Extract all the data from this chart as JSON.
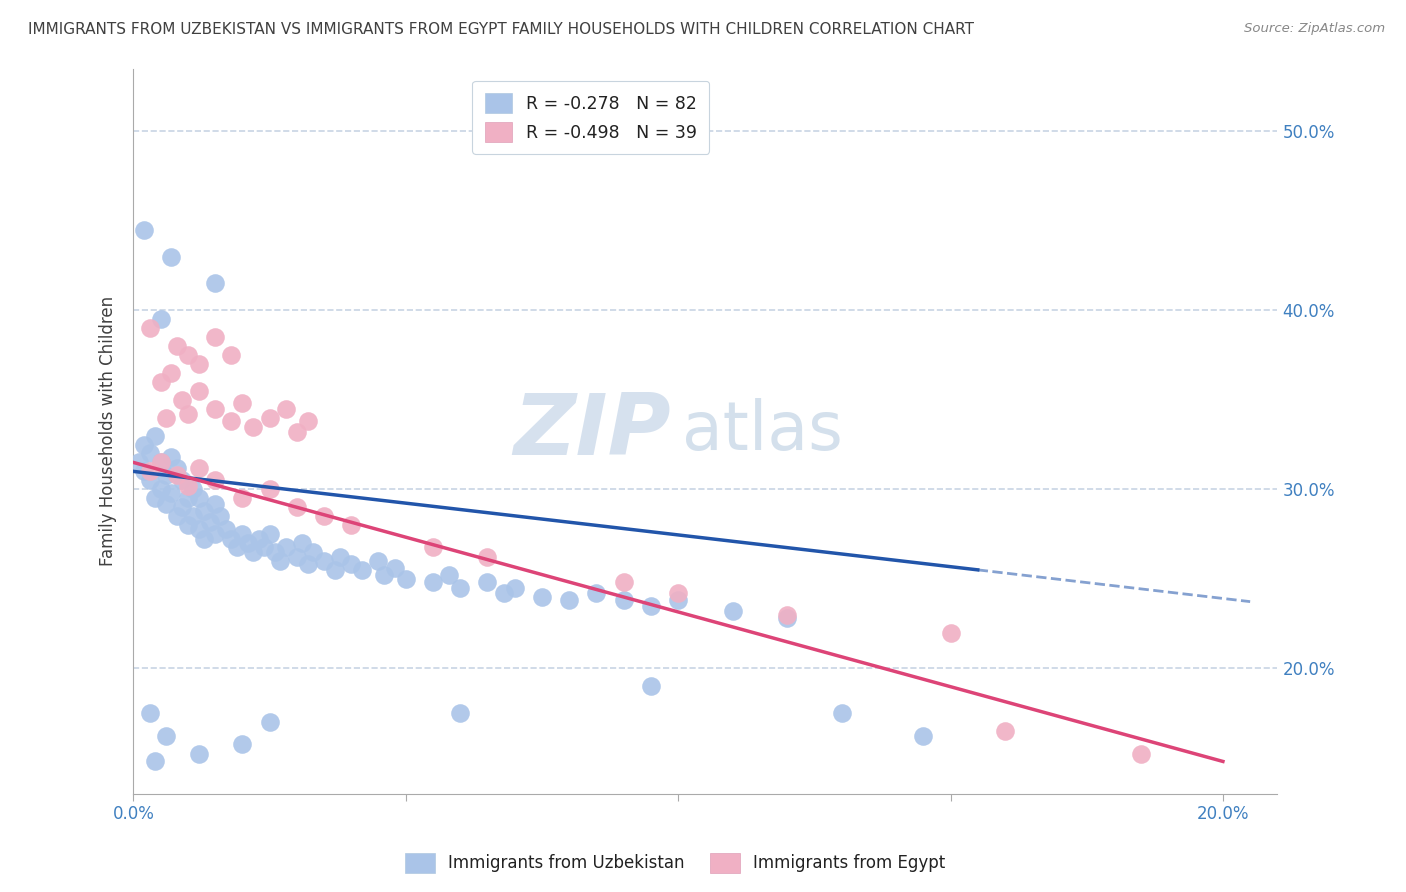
{
  "title": "IMMIGRANTS FROM UZBEKISTAN VS IMMIGRANTS FROM EGYPT FAMILY HOUSEHOLDS WITH CHILDREN CORRELATION CHART",
  "source": "Source: ZipAtlas.com",
  "ylabel": "Family Households with Children",
  "xlim": [
    0.0,
    0.21
  ],
  "ylim": [
    0.13,
    0.535
  ],
  "x_ticks": [
    0.0,
    0.05,
    0.1,
    0.15,
    0.2
  ],
  "y_ticks": [
    0.2,
    0.3,
    0.4,
    0.5
  ],
  "legend_entry1": "R = -0.278   N = 82",
  "legend_entry2": "R = -0.498   N = 39",
  "legend_label1": "Immigrants from Uzbekistan",
  "legend_label2": "Immigrants from Egypt",
  "blue_color": "#aac4e8",
  "pink_color": "#f0b0c4",
  "blue_line_color": "#2255aa",
  "pink_line_color": "#dd4477",
  "blue_scatter": [
    [
      0.001,
      0.315
    ],
    [
      0.002,
      0.31
    ],
    [
      0.002,
      0.325
    ],
    [
      0.003,
      0.305
    ],
    [
      0.003,
      0.32
    ],
    [
      0.004,
      0.33
    ],
    [
      0.004,
      0.295
    ],
    [
      0.005,
      0.315
    ],
    [
      0.005,
      0.3
    ],
    [
      0.006,
      0.308
    ],
    [
      0.006,
      0.292
    ],
    [
      0.007,
      0.318
    ],
    [
      0.007,
      0.298
    ],
    [
      0.008,
      0.312
    ],
    [
      0.008,
      0.285
    ],
    [
      0.009,
      0.305
    ],
    [
      0.009,
      0.29
    ],
    [
      0.01,
      0.295
    ],
    [
      0.01,
      0.28
    ],
    [
      0.011,
      0.3
    ],
    [
      0.011,
      0.285
    ],
    [
      0.012,
      0.295
    ],
    [
      0.012,
      0.278
    ],
    [
      0.013,
      0.288
    ],
    [
      0.013,
      0.272
    ],
    [
      0.014,
      0.282
    ],
    [
      0.015,
      0.292
    ],
    [
      0.015,
      0.275
    ],
    [
      0.016,
      0.285
    ],
    [
      0.017,
      0.278
    ],
    [
      0.018,
      0.272
    ],
    [
      0.019,
      0.268
    ],
    [
      0.02,
      0.275
    ],
    [
      0.021,
      0.27
    ],
    [
      0.022,
      0.265
    ],
    [
      0.023,
      0.272
    ],
    [
      0.024,
      0.268
    ],
    [
      0.025,
      0.275
    ],
    [
      0.026,
      0.265
    ],
    [
      0.027,
      0.26
    ],
    [
      0.028,
      0.268
    ],
    [
      0.03,
      0.262
    ],
    [
      0.031,
      0.27
    ],
    [
      0.032,
      0.258
    ],
    [
      0.033,
      0.265
    ],
    [
      0.035,
      0.26
    ],
    [
      0.037,
      0.255
    ],
    [
      0.038,
      0.262
    ],
    [
      0.04,
      0.258
    ],
    [
      0.042,
      0.255
    ],
    [
      0.045,
      0.26
    ],
    [
      0.046,
      0.252
    ],
    [
      0.048,
      0.256
    ],
    [
      0.05,
      0.25
    ],
    [
      0.055,
      0.248
    ],
    [
      0.058,
      0.252
    ],
    [
      0.06,
      0.245
    ],
    [
      0.065,
      0.248
    ],
    [
      0.068,
      0.242
    ],
    [
      0.07,
      0.245
    ],
    [
      0.075,
      0.24
    ],
    [
      0.08,
      0.238
    ],
    [
      0.085,
      0.242
    ],
    [
      0.09,
      0.238
    ],
    [
      0.095,
      0.235
    ],
    [
      0.1,
      0.238
    ],
    [
      0.11,
      0.232
    ],
    [
      0.12,
      0.228
    ],
    [
      0.002,
      0.445
    ],
    [
      0.007,
      0.43
    ],
    [
      0.015,
      0.415
    ],
    [
      0.005,
      0.395
    ],
    [
      0.003,
      0.175
    ],
    [
      0.006,
      0.162
    ],
    [
      0.012,
      0.152
    ],
    [
      0.004,
      0.148
    ],
    [
      0.02,
      0.158
    ],
    [
      0.025,
      0.17
    ],
    [
      0.06,
      0.175
    ],
    [
      0.095,
      0.19
    ],
    [
      0.13,
      0.175
    ],
    [
      0.145,
      0.162
    ]
  ],
  "pink_scatter": [
    [
      0.003,
      0.39
    ],
    [
      0.008,
      0.38
    ],
    [
      0.01,
      0.375
    ],
    [
      0.012,
      0.37
    ],
    [
      0.005,
      0.36
    ],
    [
      0.007,
      0.365
    ],
    [
      0.015,
      0.385
    ],
    [
      0.018,
      0.375
    ],
    [
      0.006,
      0.34
    ],
    [
      0.009,
      0.35
    ],
    [
      0.01,
      0.342
    ],
    [
      0.012,
      0.355
    ],
    [
      0.015,
      0.345
    ],
    [
      0.018,
      0.338
    ],
    [
      0.02,
      0.348
    ],
    [
      0.022,
      0.335
    ],
    [
      0.025,
      0.34
    ],
    [
      0.028,
      0.345
    ],
    [
      0.03,
      0.332
    ],
    [
      0.032,
      0.338
    ],
    [
      0.003,
      0.31
    ],
    [
      0.005,
      0.315
    ],
    [
      0.008,
      0.308
    ],
    [
      0.01,
      0.302
    ],
    [
      0.012,
      0.312
    ],
    [
      0.015,
      0.305
    ],
    [
      0.02,
      0.295
    ],
    [
      0.025,
      0.3
    ],
    [
      0.03,
      0.29
    ],
    [
      0.035,
      0.285
    ],
    [
      0.04,
      0.28
    ],
    [
      0.055,
      0.268
    ],
    [
      0.065,
      0.262
    ],
    [
      0.09,
      0.248
    ],
    [
      0.1,
      0.242
    ],
    [
      0.12,
      0.23
    ],
    [
      0.15,
      0.22
    ],
    [
      0.16,
      0.165
    ],
    [
      0.185,
      0.152
    ]
  ],
  "watermark_zip": "ZIP",
  "watermark_atlas": "atlas",
  "background_color": "#ffffff",
  "grid_color": "#c8d4e4",
  "title_color": "#404040",
  "tick_label_color": "#4080c0"
}
